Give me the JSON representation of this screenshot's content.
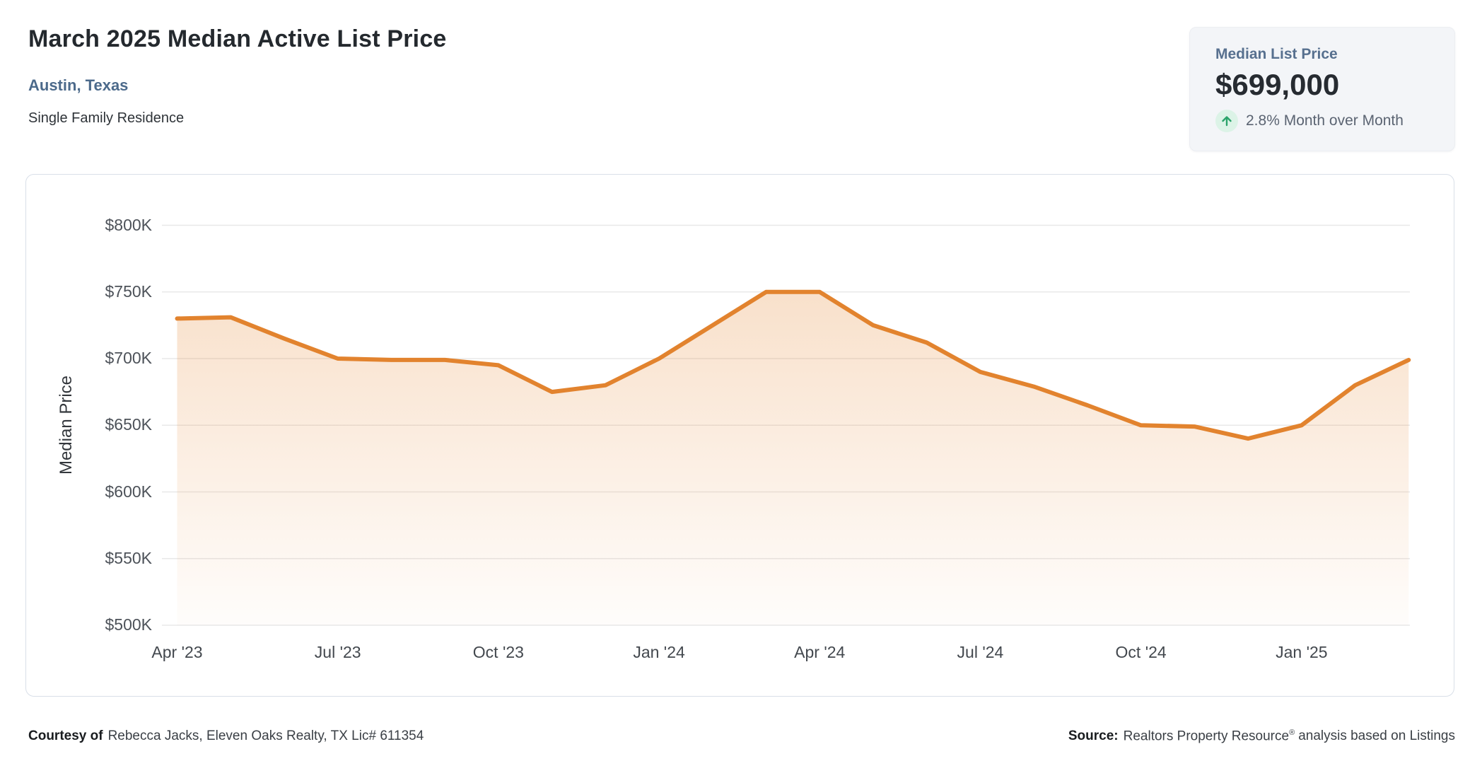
{
  "page": {
    "background": "#ffffff"
  },
  "header": {
    "title": "March 2025 Median Active List Price",
    "location": "Austin, Texas",
    "property_type": "Single Family Residence"
  },
  "summary_card": {
    "label": "Median List Price",
    "value": "$699,000",
    "trend": {
      "direction": "up",
      "icon": "arrow-up-icon",
      "text": "2.8% Month over Month",
      "arrow_color": "#2aa36a",
      "arrow_bg": "#dcf3e7"
    }
  },
  "chart_data": {
    "type": "area",
    "title": "",
    "xlabel": "",
    "ylabel": "Median Price",
    "units": "USD thousands",
    "x": [
      "Apr '23",
      "May '23",
      "Jun '23",
      "Jul '23",
      "Aug '23",
      "Sep '23",
      "Oct '23",
      "Nov '23",
      "Dec '23",
      "Jan '24",
      "Feb '24",
      "Mar '24",
      "Apr '24",
      "May '24",
      "Jun '24",
      "Jul '24",
      "Aug '24",
      "Sep '24",
      "Oct '24",
      "Nov '24",
      "Dec '24",
      "Jan '25",
      "Feb '25",
      "Mar '25"
    ],
    "series": [
      {
        "name": "Median Active List Price",
        "values_k": [
          730,
          731,
          715,
          700,
          699,
          699,
          695,
          675,
          680,
          700,
          725,
          750,
          750,
          725,
          712,
          690,
          679,
          665,
          650,
          649,
          640,
          650,
          680,
          699
        ]
      }
    ],
    "ylim_k": [
      500,
      800
    ],
    "y_ticks_k": [
      800,
      750,
      700,
      650,
      600,
      550,
      500
    ],
    "y_tick_labels": [
      "$800K",
      "$750K",
      "$700K",
      "$650K",
      "$600K",
      "$550K",
      "$500K"
    ],
    "x_tick_month_indices": [
      0,
      3,
      6,
      9,
      12,
      15,
      18,
      21
    ],
    "x_tick_labels": [
      "Apr '23",
      "Jul '23",
      "Oct '23",
      "Jan '24",
      "Apr '24",
      "Jul '24",
      "Oct '24",
      "Jan '25"
    ],
    "grid": true,
    "legend": false,
    "line_color": "#e2832e",
    "fill_color": "#e68a37",
    "grid_color": "#e8e8e8",
    "axis_label_color": "#4d5259"
  },
  "footer": {
    "courtesy_label": "Courtesy of",
    "courtesy_text": "Rebecca Jacks, Eleven Oaks Realty, TX Lic# 611354",
    "source_label": "Source:",
    "source_name": "Realtors Property Resource",
    "source_reg": "®",
    "source_suffix": "analysis based on Listings"
  }
}
